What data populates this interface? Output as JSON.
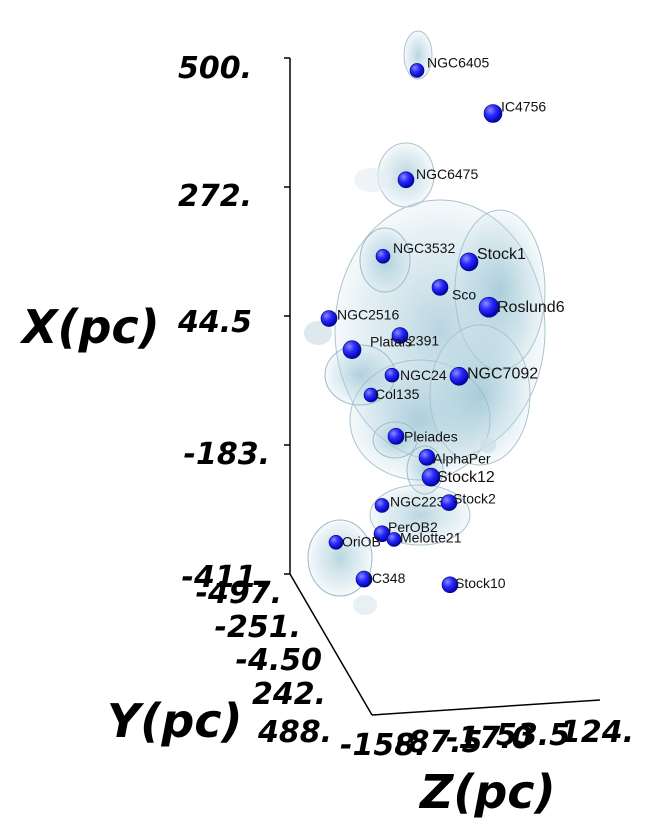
{
  "chart_data": {
    "type": "scatter3d",
    "title": "",
    "x_axis": {
      "label": "X(pc)",
      "range": [
        -411,
        500
      ],
      "ticks": [
        "500.",
        "272.",
        "44.5",
        "-183.",
        "-411."
      ]
    },
    "y_axis": {
      "label": "Y(pc)",
      "range": [
        -497,
        488
      ],
      "ticks": [
        "-497.",
        "-251.",
        "-4.50",
        "242.",
        "488."
      ]
    },
    "z_axis": {
      "label": "Z(pc)",
      "range": [
        -158,
        124
      ],
      "ticks": [
        "-158.",
        "-87.5",
        "-17.0",
        "53.5",
        "124."
      ]
    },
    "point_color": "#1a1aff",
    "cloud_color": "#9fc7d8",
    "clusters": [
      {
        "name": "NGC6405",
        "x": 478
      },
      {
        "name": "IC4756",
        "x": 402
      },
      {
        "name": "NGC6475",
        "x": 285
      },
      {
        "name": "NGC3532",
        "x": 150
      },
      {
        "name": "Stock1",
        "x": 140
      },
      {
        "name": "Sco",
        "x": 95
      },
      {
        "name": "Roslund6",
        "x": 60
      },
      {
        "name": "NGC2516",
        "x": 40
      },
      {
        "name": "Dup2391",
        "x": 10
      },
      {
        "name": "Platais",
        "x": -15
      },
      {
        "name": "NGC2451",
        "x": -60
      },
      {
        "name": "NGC7092",
        "x": -62
      },
      {
        "name": "Col135",
        "x": -95
      },
      {
        "name": "Pleiades",
        "x": -168
      },
      {
        "name": "AlphaPer",
        "x": -205
      },
      {
        "name": "Stock12",
        "x": -240
      },
      {
        "name": "NGC2232",
        "x": -290
      },
      {
        "name": "Stock2",
        "x": -285
      },
      {
        "name": "PerOB2",
        "x": -340
      },
      {
        "name": "Melotte21",
        "x": -350
      },
      {
        "name": "OriOB",
        "x": -355
      },
      {
        "name": "IC348",
        "x": -420
      },
      {
        "name": "Stock10",
        "x": -430
      }
    ]
  }
}
